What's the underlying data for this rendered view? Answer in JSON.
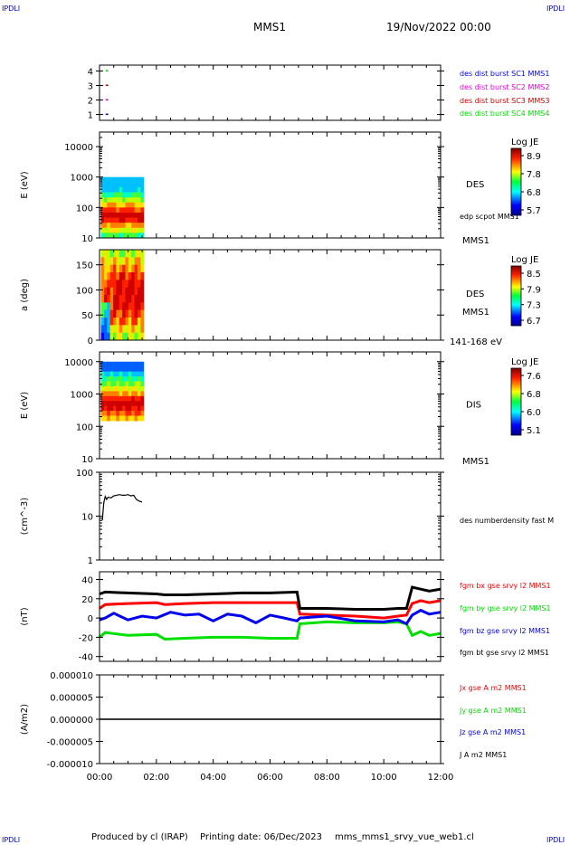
{
  "header": {
    "corner_tl": "IPDLI",
    "corner_tr": "IPDLI",
    "corner_bl": "IPDLI",
    "corner_br": "IPDLI",
    "spacecraft": "MMS1",
    "datetime": "19/Nov/2022 00:00"
  },
  "footer": {
    "produced": "Produced by cl (IRAP)",
    "printing": "Printing date: 06/Dec/2023",
    "file": "mms_mms1_srvy_vue_web1.cl"
  },
  "x_axis": {
    "range_hours": [
      0,
      12
    ],
    "tick_labels": [
      "00:00",
      "02:00",
      "04:00",
      "06:00",
      "08:00",
      "10:00",
      "12:00"
    ]
  },
  "colors": {
    "black": "#000000",
    "red": "#ff0000",
    "green": "#00e000",
    "blue": "#0000ee",
    "magenta": "#e000e0",
    "darkred": "#cc0000"
  },
  "chart_data": [
    {
      "id": "sc-flags",
      "type": "scatter",
      "ylabel": "",
      "ylim": [
        0.6,
        4.4
      ],
      "y_ticks": [
        1,
        2,
        3,
        4
      ],
      "y_tick_labels": [
        "1",
        "2",
        "3",
        "4"
      ],
      "series": [
        {
          "name": "des dist burst SC1 MMS1",
          "color": "#0000ee",
          "x": [
            0.15
          ],
          "y": [
            1
          ]
        },
        {
          "name": "des dist burst SC2 MMS2",
          "color": "#e000e0",
          "x": [
            0.15
          ],
          "y": [
            2
          ]
        },
        {
          "name": "des dist burst SC3 MMS3",
          "color": "#cc0000",
          "x": [
            0.15
          ],
          "y": [
            3
          ]
        },
        {
          "name": "des dist burst SC4 MMS4",
          "color": "#00e000",
          "x": [
            0.15
          ],
          "y": [
            4
          ]
        }
      ]
    },
    {
      "id": "des-energy",
      "type": "heatmap",
      "ylabel": "E (eV)",
      "yscale": "log",
      "ylim": [
        10,
        30000
      ],
      "y_ticks": [
        10,
        100,
        1000,
        10000
      ],
      "y_tick_labels": [
        "10",
        "100",
        "1000",
        "10000"
      ],
      "x_extent": [
        0.05,
        1.55
      ],
      "y_extent": [
        10,
        1000
      ],
      "side_label": "DES",
      "side_label2": "MMS1",
      "overlay_label": "edp scpot MMS1",
      "colorbar": {
        "title": "Log JE",
        "tick_labels": [
          "8.9",
          "7.8",
          "6.8",
          "5.7"
        ]
      }
    },
    {
      "id": "des-pitch",
      "type": "heatmap",
      "ylabel": "a (deg)",
      "ylim": [
        0,
        180
      ],
      "y_ticks": [
        0,
        50,
        100,
        150
      ],
      "y_tick_labels": [
        "0",
        "50",
        "100",
        "150"
      ],
      "x_extent": [
        0.05,
        1.55
      ],
      "y_extent": [
        0,
        180
      ],
      "side_label": "DES",
      "side_label2": "MMS1",
      "energy_label": "141-168 eV",
      "colorbar": {
        "title": "Log JE",
        "tick_labels": [
          "8.5",
          "7.9",
          "7.3",
          "6.7"
        ]
      }
    },
    {
      "id": "dis-energy",
      "type": "heatmap",
      "ylabel": "E (eV)",
      "yscale": "log",
      "ylim": [
        10,
        20000
      ],
      "y_ticks": [
        10,
        100,
        1000,
        10000
      ],
      "y_tick_labels": [
        "10",
        "100",
        "1000",
        "10000"
      ],
      "x_extent": [
        0.05,
        1.55
      ],
      "y_extent": [
        150,
        10000
      ],
      "side_label": "DIS",
      "side_label2": "MMS1",
      "colorbar": {
        "title": "Log JE",
        "tick_labels": [
          "7.6",
          "6.8",
          "6.0",
          "5.1"
        ]
      }
    },
    {
      "id": "density",
      "type": "line",
      "ylabel": "(cm^-3)",
      "yscale": "log",
      "ylim": [
        1,
        100
      ],
      "y_ticks": [
        1,
        10,
        100
      ],
      "y_tick_labels": [
        "1",
        "10",
        "100"
      ],
      "series": [
        {
          "name": "des numberdensity fast M",
          "color": "#000000",
          "x": [
            0.1,
            0.15,
            0.2,
            0.25,
            0.3,
            0.4,
            0.5,
            0.6,
            0.7,
            0.8,
            0.9,
            1.0,
            1.1,
            1.2,
            1.3,
            1.4,
            1.5
          ],
          "y": [
            8,
            20,
            28,
            24,
            27,
            26,
            29,
            30,
            31,
            30,
            30,
            31,
            29,
            30,
            24,
            22,
            21
          ]
        }
      ]
    },
    {
      "id": "bfield",
      "type": "line",
      "ylabel": "(nT)",
      "ylim": [
        -45,
        48
      ],
      "y_ticks": [
        -40,
        -20,
        0,
        20,
        40
      ],
      "y_tick_labels": [
        "-40",
        "-20",
        "0",
        "20",
        "40"
      ],
      "series": [
        {
          "name": "fgm bx gse srvy l2 MMS1",
          "color": "#ff0000",
          "x": [
            0,
            0.2,
            1.0,
            2.0,
            2.3,
            3.0,
            4.0,
            5.0,
            6.0,
            6.95,
            7.05,
            8.0,
            9.0,
            10.0,
            10.5,
            10.8,
            11.0,
            11.3,
            11.6,
            12.0
          ],
          "y": [
            10,
            14,
            15,
            16,
            14,
            15,
            16,
            16,
            16,
            16,
            4,
            3,
            2,
            0,
            2,
            3,
            15,
            18,
            16,
            18
          ]
        },
        {
          "name": "fgm by gse srvy l2 MMS1",
          "color": "#00e000",
          "x": [
            0,
            0.2,
            1.0,
            2.0,
            2.3,
            3.0,
            4.0,
            5.0,
            6.0,
            6.95,
            7.05,
            8.0,
            9.0,
            10.0,
            10.5,
            10.8,
            11.0,
            11.3,
            11.6,
            12.0
          ],
          "y": [
            -20,
            -15,
            -18,
            -17,
            -22,
            -21,
            -20,
            -20,
            -21,
            -21,
            -6,
            -4,
            -5,
            -5,
            -4,
            -6,
            -18,
            -14,
            -18,
            -16
          ]
        },
        {
          "name": "fgm bz gse srvy l2 MMS1",
          "color": "#0000ee",
          "x": [
            0,
            0.2,
            0.5,
            1.0,
            1.5,
            2.0,
            2.5,
            3.0,
            3.5,
            4.0,
            4.5,
            5.0,
            5.5,
            6.0,
            6.5,
            6.95,
            7.05,
            8.0,
            9.0,
            10.0,
            10.5,
            10.8,
            11.0,
            11.3,
            11.6,
            12.0
          ],
          "y": [
            -2,
            0,
            5,
            -2,
            2,
            0,
            6,
            3,
            4,
            -3,
            4,
            2,
            -5,
            3,
            0,
            -3,
            0,
            2,
            -3,
            -4,
            -2,
            -6,
            3,
            8,
            4,
            6
          ]
        },
        {
          "name": "fgm bt gse srvy l2 MMS1",
          "color": "#000000",
          "x": [
            0,
            0.2,
            1.0,
            2.0,
            2.3,
            3.0,
            4.0,
            5.0,
            6.0,
            6.95,
            7.05,
            8.0,
            9.0,
            10.0,
            10.5,
            10.8,
            11.0,
            11.3,
            11.6,
            12.0
          ],
          "y": [
            25,
            27,
            26,
            25,
            24,
            24,
            25,
            26,
            26,
            27,
            10,
            10,
            9,
            9,
            10,
            10,
            32,
            30,
            28,
            30
          ]
        }
      ]
    },
    {
      "id": "current",
      "type": "line",
      "ylabel": "(A/m2)",
      "ylim": [
        -1e-05,
        1e-05
      ],
      "y_ticks": [
        -1e-05,
        -5e-06,
        0,
        5e-06,
        1e-05
      ],
      "y_tick_labels": [
        "-0.000010",
        "-0.000005",
        "0.000000",
        "0.000005",
        "0.000010"
      ],
      "series": [
        {
          "name": "Jx gse A m2 MMS1",
          "color": "#ff0000",
          "x": [
            0,
            12
          ],
          "y": [
            0,
            0
          ]
        },
        {
          "name": "Jy gse A m2 MMS1",
          "color": "#00e000",
          "x": [
            0,
            12
          ],
          "y": [
            0,
            0
          ]
        },
        {
          "name": "Jz gse A m2 MMS1",
          "color": "#0000ee",
          "x": [
            0,
            12
          ],
          "y": [
            0,
            0
          ]
        },
        {
          "name": "J A m2 MMS1",
          "color": "#000000",
          "x": [
            0,
            12
          ],
          "y": [
            0,
            0
          ]
        }
      ]
    }
  ]
}
